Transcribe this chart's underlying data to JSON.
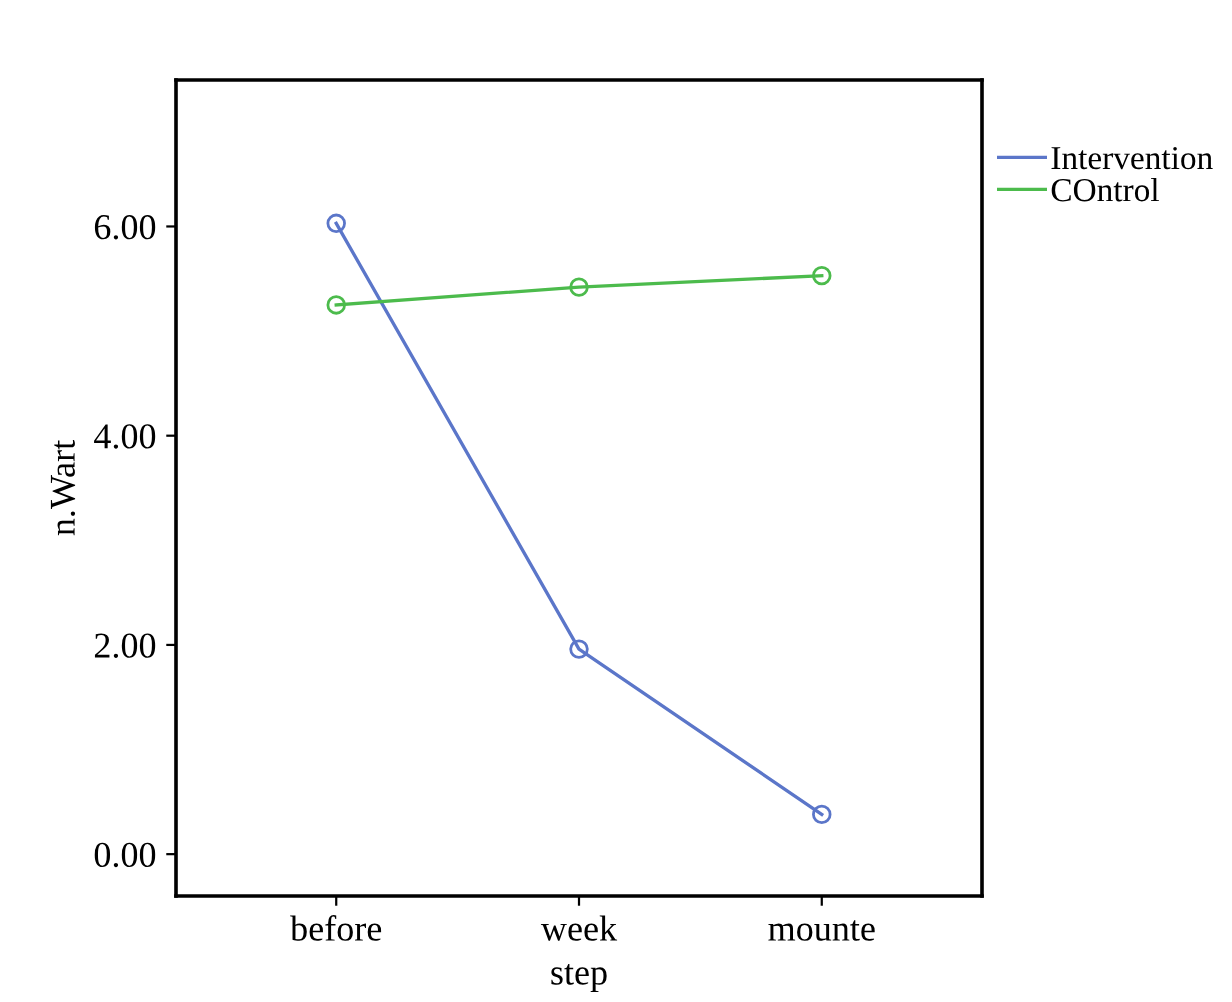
{
  "chart_data": {
    "type": "line",
    "xlabel": "step",
    "ylabel": "n.Wart",
    "categories": [
      "before",
      "week",
      "mounte"
    ],
    "series": [
      {
        "name": "Intervention",
        "color": "#5b76c9",
        "values": [
          6.03,
          1.96,
          0.38
        ]
      },
      {
        "name": "COntrol",
        "color": "#4cbb4c",
        "values": [
          5.25,
          5.42,
          5.53
        ]
      }
    ],
    "ylim": [
      -0.4,
      7.4
    ],
    "yticks": [
      {
        "value": 0,
        "label": "0.00"
      },
      {
        "value": 2,
        "label": "2.00"
      },
      {
        "value": 4,
        "label": "4.00"
      },
      {
        "value": 6,
        "label": "6.00"
      }
    ],
    "marker": "circle",
    "line_style": "solid",
    "legend": "top right",
    "grid": false
  }
}
